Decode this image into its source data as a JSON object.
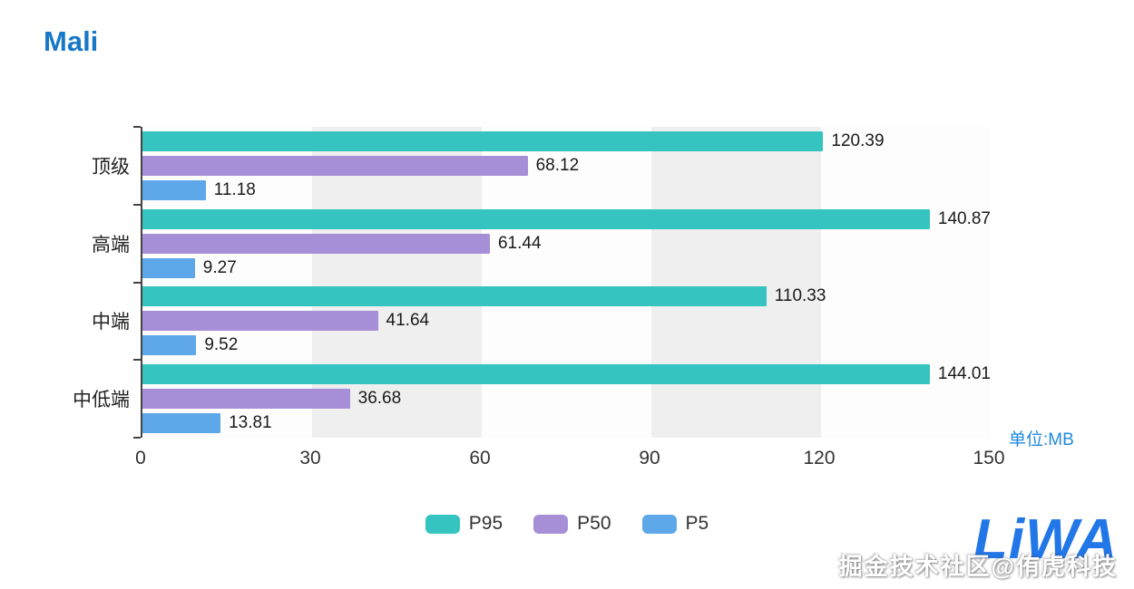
{
  "title": "Mali",
  "unit_label": "单位:MB",
  "watermark": {
    "logo": "LiWA",
    "text": "掘金技术社区@侑虎科技"
  },
  "chart_data": {
    "type": "bar",
    "orientation": "horizontal",
    "title": "Mali",
    "xlabel": "",
    "ylabel": "",
    "unit": "MB",
    "xlim": [
      0,
      150
    ],
    "x_ticks": [
      0,
      30,
      60,
      90,
      120,
      150
    ],
    "grid": "split-area-bands",
    "legend_position": "bottom",
    "categories": [
      "顶级",
      "高端",
      "中端",
      "中低端"
    ],
    "series": [
      {
        "name": "P95",
        "color": "#35c4bf",
        "values": [
          120.39,
          140.87,
          110.33,
          144.01
        ]
      },
      {
        "name": "P50",
        "color": "#a78fd8",
        "values": [
          68.12,
          61.44,
          41.64,
          36.68
        ]
      },
      {
        "name": "P5",
        "color": "#5ea8ea",
        "values": [
          11.18,
          9.27,
          9.52,
          13.81
        ]
      }
    ]
  }
}
